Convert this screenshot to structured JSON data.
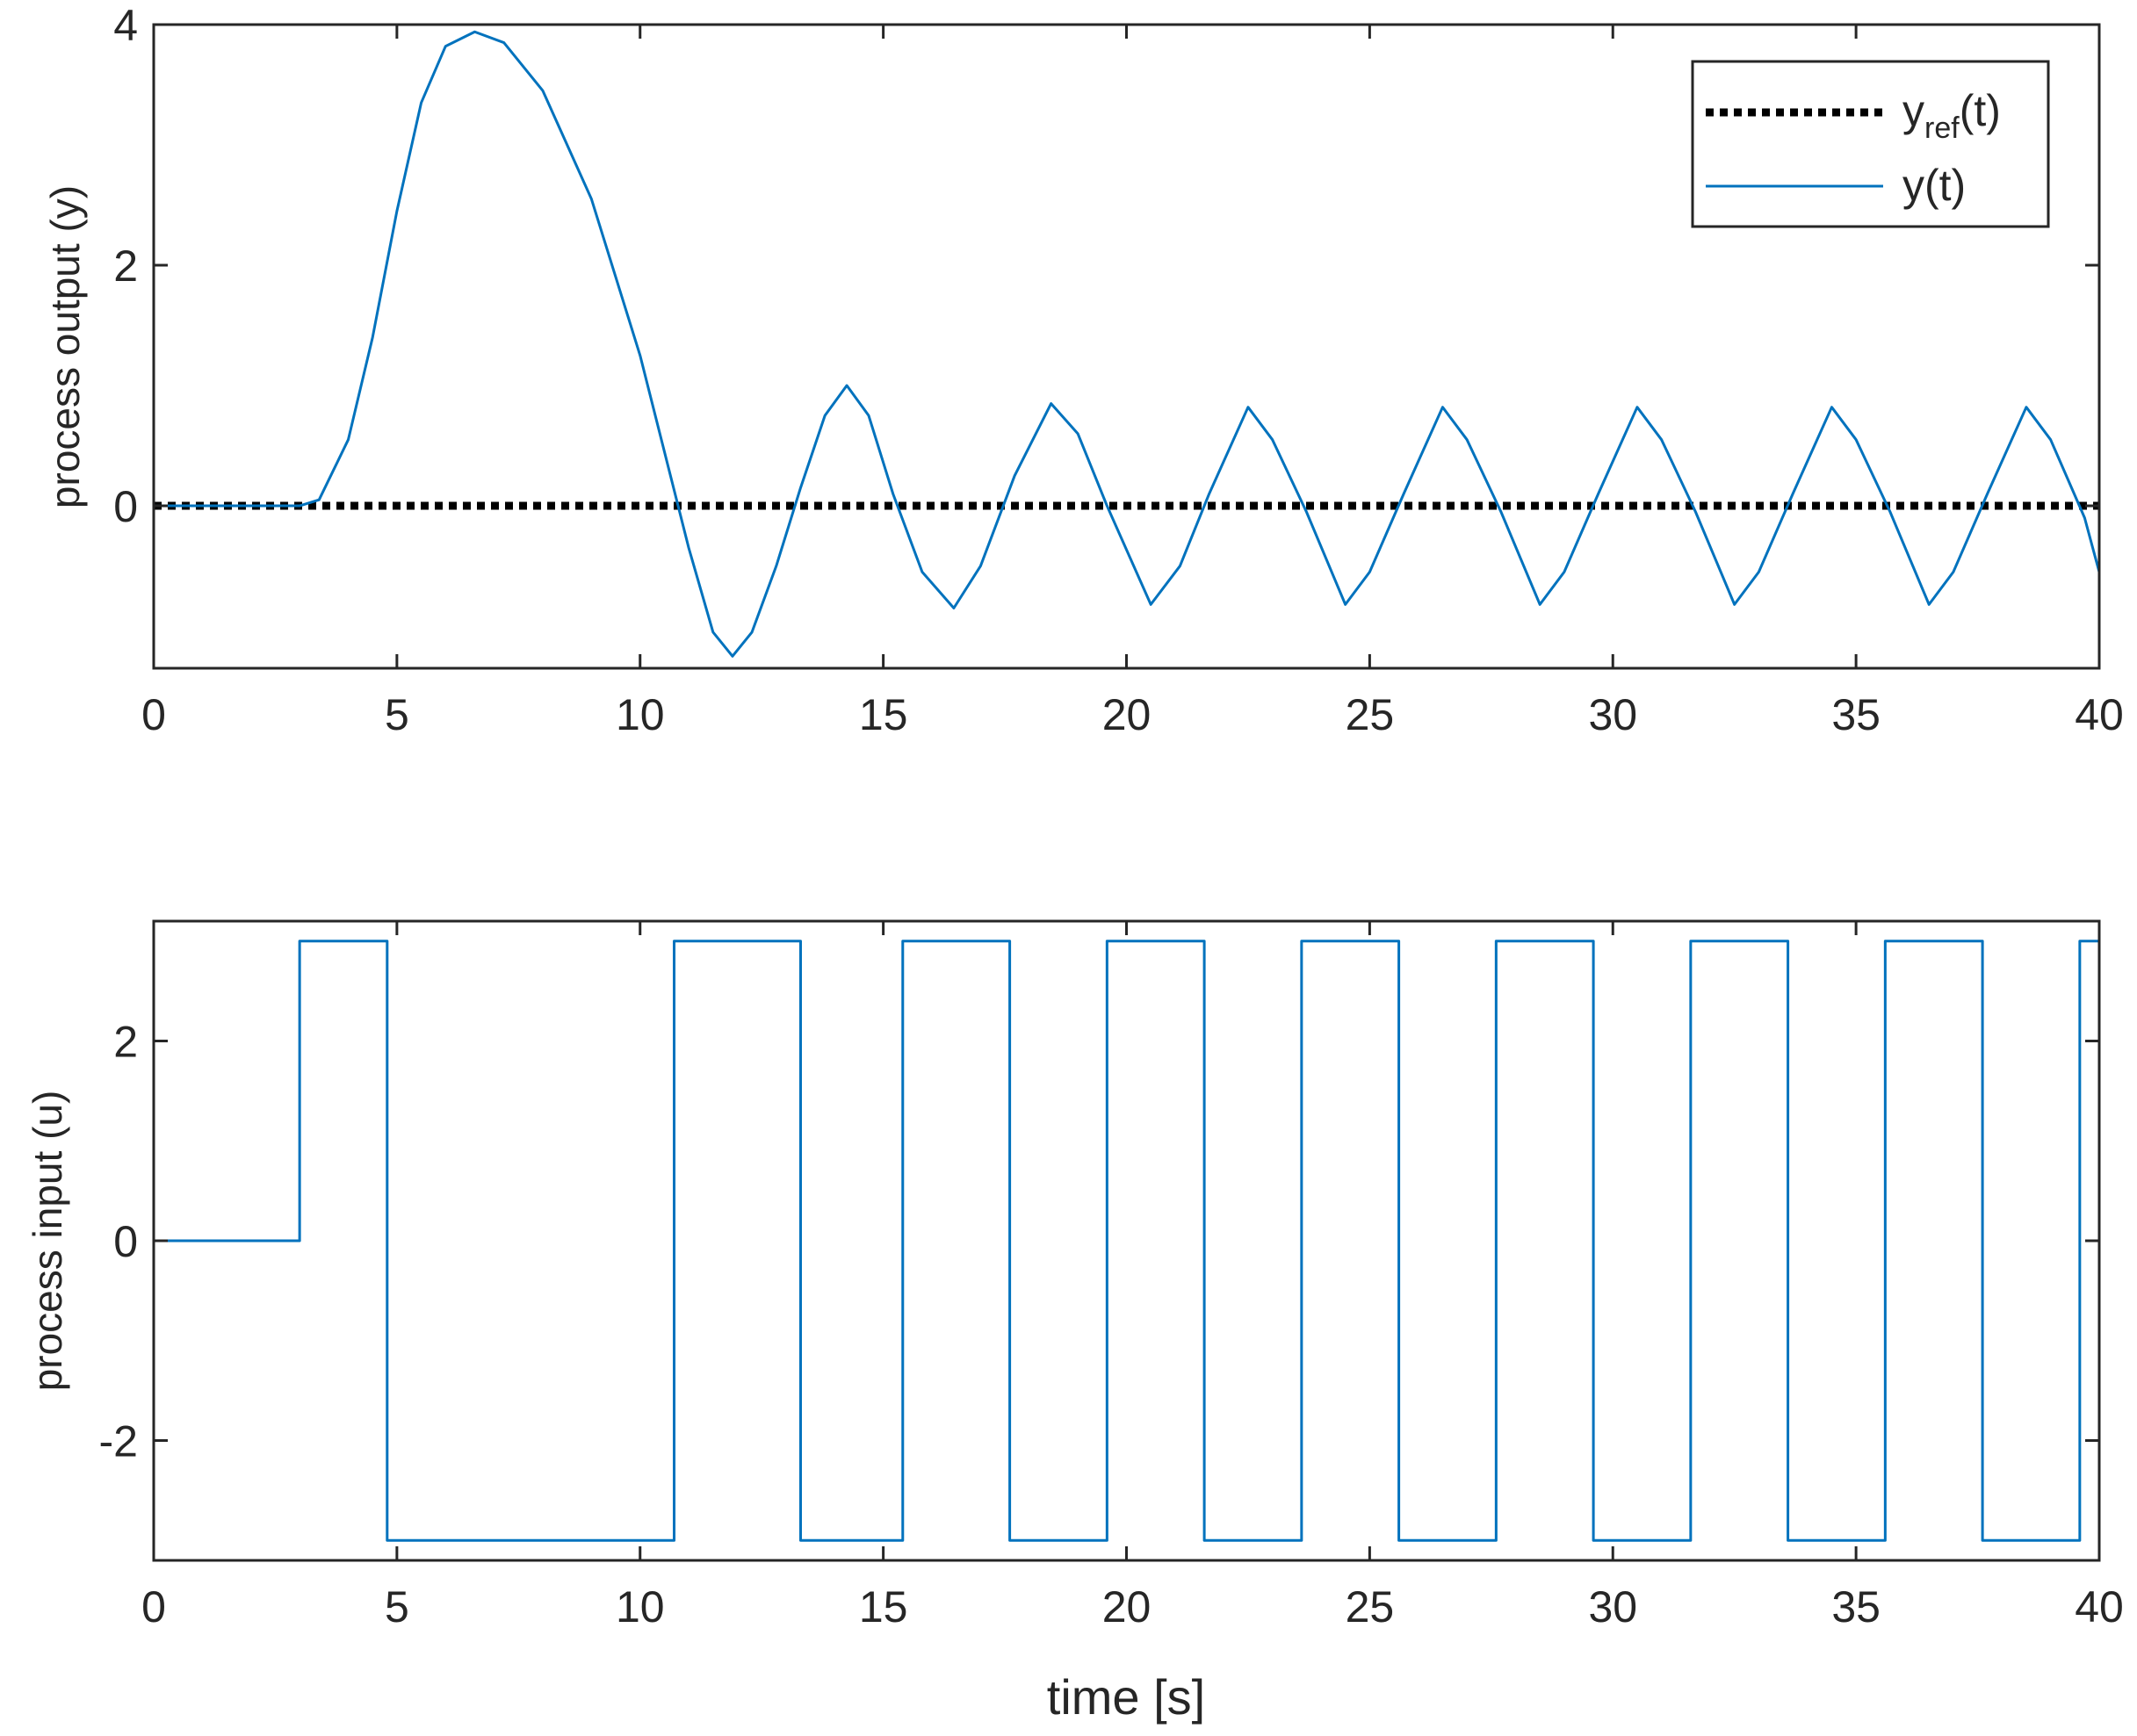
{
  "chart_data": [
    {
      "type": "line",
      "ylabel": "process output (y)",
      "xlabel": "",
      "xlim": [
        0,
        40
      ],
      "ylim": [
        -1.35,
        4.0
      ],
      "xticks": [
        "0",
        "5",
        "10",
        "15",
        "20",
        "25",
        "30",
        "35",
        "40"
      ],
      "yticks": [
        "0",
        "2",
        "4"
      ],
      "ytick_values": [
        0,
        2,
        4
      ],
      "grid": false,
      "legend_position": "top-right",
      "legend": {
        "ref_base": "y",
        "ref_sub": "ref",
        "ref_tail": "(t)",
        "output": "y(t)"
      },
      "series": [
        {
          "name": "yref(t)",
          "color": "#000000",
          "style": "dotted",
          "x": [
            0,
            40
          ],
          "y": [
            0,
            0
          ]
        },
        {
          "name": "y(t)",
          "color": "#0072BD",
          "style": "solid",
          "x": [
            0,
            3.0,
            3.4,
            4.0,
            4.5,
            5.0,
            5.5,
            6.0,
            6.6,
            7.2,
            8.0,
            9.0,
            10.0,
            10.5,
            11.0,
            11.5,
            11.9,
            12.3,
            12.8,
            13.3,
            13.8,
            14.25,
            14.7,
            15.2,
            15.8,
            16.45,
            17.0,
            17.7,
            18.45,
            19.0,
            19.6,
            20.5,
            21.1,
            21.7,
            22.5,
            23.0,
            23.7,
            24.5,
            25.0,
            25.7,
            26.5,
            27.0,
            27.7,
            28.5,
            29.0,
            29.7,
            30.5,
            31.0,
            31.7,
            32.5,
            33.0,
            33.7,
            34.5,
            35.0,
            35.7,
            36.5,
            37.0,
            37.7,
            38.5,
            39.0,
            39.7,
            40.0
          ],
          "y": [
            0,
            0,
            0.05,
            0.55,
            1.4,
            2.45,
            3.35,
            3.82,
            3.94,
            3.85,
            3.45,
            2.55,
            1.25,
            0.45,
            -0.35,
            -1.05,
            -1.25,
            -1.05,
            -0.5,
            0.15,
            0.75,
            1.0,
            0.75,
            0.1,
            -0.55,
            -0.85,
            -0.5,
            0.25,
            0.85,
            0.6,
            0.0,
            -0.82,
            -0.5,
            0.1,
            0.82,
            0.55,
            -0.05,
            -0.82,
            -0.55,
            0.1,
            0.82,
            0.55,
            -0.05,
            -0.82,
            -0.55,
            0.1,
            0.82,
            0.55,
            -0.05,
            -0.82,
            -0.55,
            0.1,
            0.82,
            0.55,
            -0.05,
            -0.82,
            -0.55,
            0.1,
            0.82,
            0.55,
            -0.1,
            -0.55
          ]
        }
      ]
    },
    {
      "type": "line",
      "ylabel": "process input (u)",
      "xlabel": "time [s]",
      "xlim": [
        0,
        40
      ],
      "ylim": [
        -3.2,
        3.2
      ],
      "xticks": [
        "0",
        "5",
        "10",
        "15",
        "20",
        "25",
        "30",
        "35",
        "40"
      ],
      "yticks": [
        "-2",
        "0",
        "2"
      ],
      "ytick_values": [
        -2,
        0,
        2
      ],
      "grid": false,
      "series": [
        {
          "name": "",
          "color": "#0072BD",
          "style": "step",
          "x": [
            0,
            3.0,
            3.0,
            4.8,
            4.8,
            10.7,
            10.7,
            13.3,
            13.3,
            15.4,
            15.4,
            17.6,
            17.6,
            19.6,
            19.6,
            21.6,
            21.6,
            23.6,
            23.6,
            25.6,
            25.6,
            27.6,
            27.6,
            29.6,
            29.6,
            31.6,
            31.6,
            33.6,
            33.6,
            35.6,
            35.6,
            37.6,
            37.6,
            39.6,
            39.6,
            40.0
          ],
          "y": [
            0,
            0,
            3,
            3,
            -3,
            -3,
            3,
            3,
            -3,
            -3,
            3,
            3,
            -3,
            -3,
            3,
            3,
            -3,
            -3,
            3,
            3,
            -3,
            -3,
            3,
            3,
            -3,
            -3,
            3,
            3,
            -3,
            -3,
            3,
            3,
            -3,
            -3,
            3,
            3
          ]
        }
      ]
    }
  ]
}
